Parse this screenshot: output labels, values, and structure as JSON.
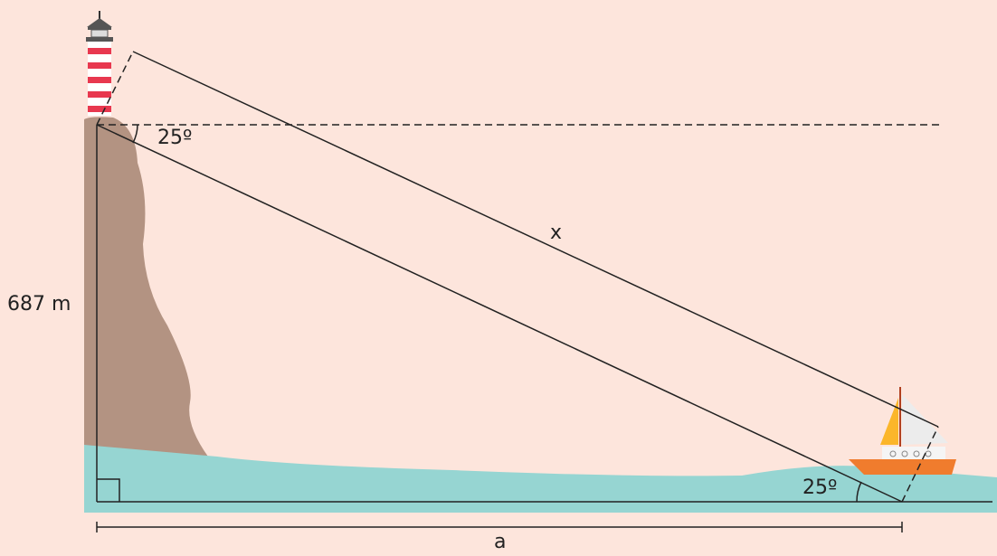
{
  "labels": {
    "angle_top": "25º",
    "angle_bottom": "25º",
    "hypotenuse": "x",
    "height": "687 m",
    "base": "a"
  }
}
